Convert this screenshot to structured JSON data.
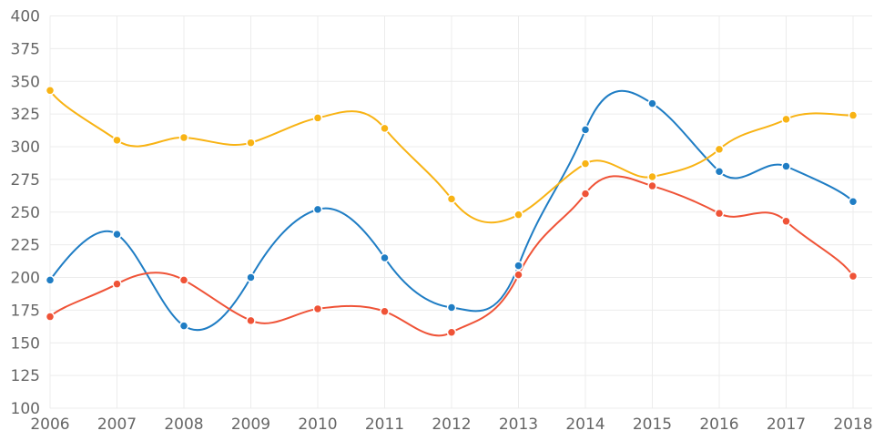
{
  "chart_data": {
    "type": "line",
    "x": [
      "2006",
      "2007",
      "2008",
      "2009",
      "2010",
      "2011",
      "2012",
      "2013",
      "2014",
      "2015",
      "2016",
      "2017",
      "2018"
    ],
    "ylim": [
      100,
      400
    ],
    "yticks": [
      100,
      125,
      150,
      175,
      200,
      225,
      250,
      275,
      300,
      325,
      350,
      375,
      400
    ],
    "grid": true,
    "smooth": true,
    "series": [
      {
        "color": "#1f7dc4",
        "values": [
          198,
          233,
          163,
          200,
          252,
          215,
          177,
          209,
          313,
          333,
          281,
          285,
          258
        ]
      },
      {
        "color": "#ef5337",
        "values": [
          170,
          195,
          198,
          167,
          176,
          174,
          158,
          202,
          264,
          270,
          249,
          243,
          201
        ]
      },
      {
        "color": "#f8b314",
        "values": [
          343,
          305,
          307,
          303,
          322,
          314,
          260,
          248,
          287,
          277,
          298,
          321,
          324
        ]
      }
    ]
  }
}
